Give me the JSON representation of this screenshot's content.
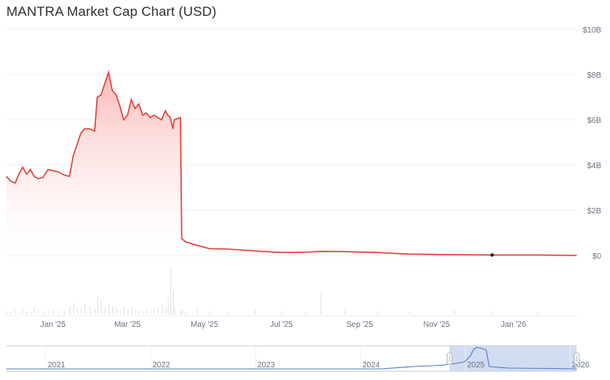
{
  "page": {
    "title": "MANTRA Market Cap Chart (USD)"
  },
  "colors": {
    "line": "#e0413b",
    "fill_top": "#f8b3b0",
    "fill_bottom": "#ffffff",
    "grid": "#eef0f2",
    "axis_text": "#6b7280",
    "volume": "#e3e5e8",
    "navigator_line": "#4f7ec9",
    "navigator_window": "#c9d6ee",
    "navigator_border": "#c3cad3",
    "marker": "#222222"
  },
  "chart_data": {
    "type": "area",
    "title": "MANTRA Market Cap Chart (USD)",
    "xlabel": "",
    "ylabel": "",
    "ylim": [
      0,
      10000000000
    ],
    "yticks": [
      "$0",
      "$2B",
      "$4B",
      "$6B",
      "$8B",
      "$10B"
    ],
    "xticks": [
      "Jan '25",
      "Mar '25",
      "May '25",
      "Jul '25",
      "Sep '25",
      "Nov '25",
      "Jan '26"
    ],
    "grid": true,
    "y_axis_side": "right",
    "series": [
      {
        "values_unit": "USD",
        "points": [
          [
            "2024-11-25",
            3500000000.0
          ],
          [
            "2024-11-28",
            3300000000.0
          ],
          [
            "2024-12-02",
            3200000000.0
          ],
          [
            "2024-12-05",
            3600000000.0
          ],
          [
            "2024-12-08",
            3900000000.0
          ],
          [
            "2024-12-11",
            3600000000.0
          ],
          [
            "2024-12-14",
            3800000000.0
          ],
          [
            "2024-12-17",
            3500000000.0
          ],
          [
            "2024-12-20",
            3400000000.0
          ],
          [
            "2024-12-24",
            3450000000.0
          ],
          [
            "2024-12-28",
            3800000000.0
          ],
          [
            "2025-01-01",
            3750000000.0
          ],
          [
            "2025-01-05",
            3700000000.0
          ],
          [
            "2025-01-10",
            3550000000.0
          ],
          [
            "2025-01-14",
            3500000000.0
          ],
          [
            "2025-01-17",
            4400000000.0
          ],
          [
            "2025-01-20",
            4900000000.0
          ],
          [
            "2025-01-23",
            5400000000.0
          ],
          [
            "2025-01-26",
            5600000000.0
          ],
          [
            "2025-01-30",
            5600000000.0
          ],
          [
            "2025-02-03",
            5500000000.0
          ],
          [
            "2025-02-05",
            7000000000.0
          ],
          [
            "2025-02-08",
            7100000000.0
          ],
          [
            "2025-02-11",
            7600000000.0
          ],
          [
            "2025-02-14",
            8100000000.0
          ],
          [
            "2025-02-17",
            7300000000.0
          ],
          [
            "2025-02-20",
            7100000000.0
          ],
          [
            "2025-02-23",
            6600000000.0
          ],
          [
            "2025-02-26",
            6000000000.0
          ],
          [
            "2025-03-01",
            6200000000.0
          ],
          [
            "2025-03-04",
            6900000000.0
          ],
          [
            "2025-03-07",
            6500000000.0
          ],
          [
            "2025-03-10",
            6700000000.0
          ],
          [
            "2025-03-13",
            6200000000.0
          ],
          [
            "2025-03-16",
            6300000000.0
          ],
          [
            "2025-03-19",
            6100000000.0
          ],
          [
            "2025-03-22",
            6200000000.0
          ],
          [
            "2025-03-25",
            6100000000.0
          ],
          [
            "2025-03-28",
            6000000000.0
          ],
          [
            "2025-03-31",
            6400000000.0
          ],
          [
            "2025-04-02",
            6200000000.0
          ],
          [
            "2025-04-04",
            6100000000.0
          ],
          [
            "2025-04-06",
            5600000000.0
          ],
          [
            "2025-04-07",
            6000000000.0
          ],
          [
            "2025-04-12",
            6100000000.0
          ],
          [
            "2025-04-13",
            750000000.0
          ],
          [
            "2025-04-16",
            600000000.0
          ],
          [
            "2025-04-25",
            450000000.0
          ],
          [
            "2025-05-05",
            300000000.0
          ],
          [
            "2025-05-20",
            280000000.0
          ],
          [
            "2025-06-10",
            200000000.0
          ],
          [
            "2025-07-01",
            130000000.0
          ],
          [
            "2025-07-20",
            140000000.0
          ],
          [
            "2025-08-01",
            180000000.0
          ],
          [
            "2025-08-20",
            170000000.0
          ],
          [
            "2025-09-15",
            130000000.0
          ],
          [
            "2025-10-10",
            60000000.0
          ],
          [
            "2025-11-15",
            30000000.0
          ],
          [
            "2025-12-15",
            20000000.0
          ],
          [
            "2026-01-20",
            20000000.0
          ],
          [
            "2026-02-20",
            0.0
          ]
        ]
      }
    ],
    "volume_present": true,
    "navigator": {
      "xticks": [
        "2021",
        "2022",
        "2023",
        "2024",
        "2025",
        "2026"
      ],
      "selected_range": [
        "2024-11-25",
        "2026-02-20"
      ]
    }
  }
}
